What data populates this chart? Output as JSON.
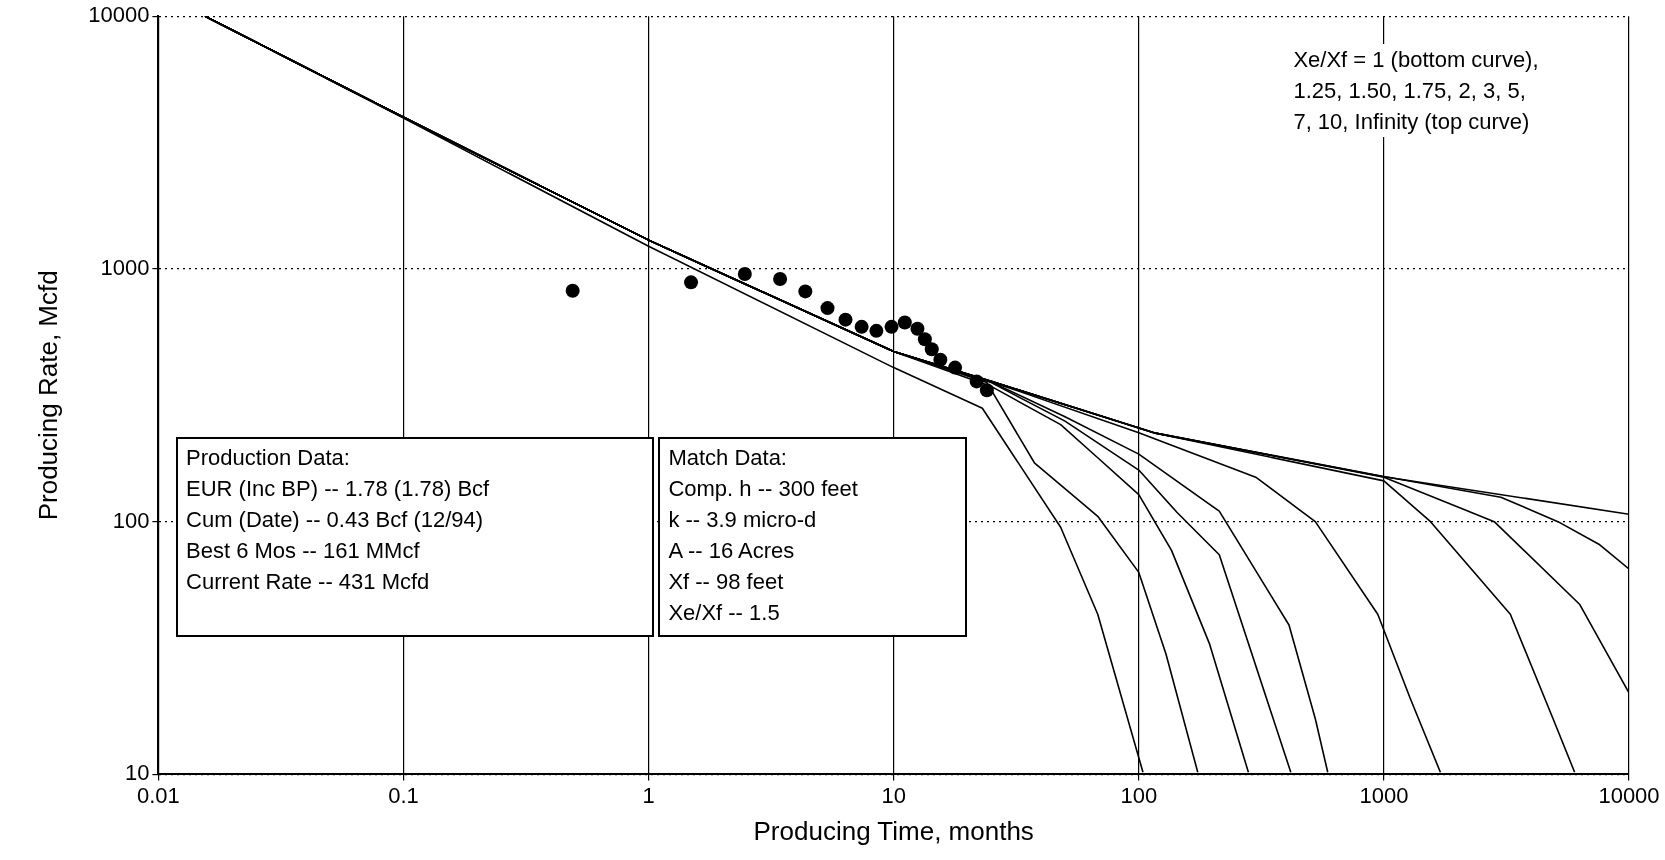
{
  "chart_data": {
    "type": "line",
    "xlabel": "Producing Time, months",
    "ylabel": "Producing Rate, Mcfd",
    "log": "xy",
    "xlim": [
      0.01,
      10000
    ],
    "ylim": [
      10,
      10000
    ],
    "xticks": [
      0.01,
      0.1,
      1,
      10,
      100,
      1000,
      10000
    ],
    "yticks": [
      10,
      100,
      1000,
      10000
    ],
    "grid": true,
    "legend": false,
    "marker": "none",
    "line_style": "solid",
    "annotations": [
      "Xe/Xf = 1 (bottom curve),\n1.25, 1.50, 1.75, 2, 3, 5,\n7, 10, Infinity (top curve)",
      "Production Data:\nEUR (Inc BP) -- 1.78 (1.78) Bcf\nCum (Date) -- 0.43 Bcf (12/94)\nBest 6 Mos -- 161 MMcf\nCurrent Rate -- 431 Mcfd",
      "Match Data:\nComp. h -- 300 feet\nk -- 3.9 micro-d\nA -- 16 Acres\nXf -- 98 feet\nXe/Xf -- 1.5"
    ],
    "series": [
      {
        "color": "#000000",
        "x": [
          0.0155,
          0.1,
          1,
          10,
          23,
          48,
          68,
          104
        ],
        "values": [
          10000,
          3950,
          1230,
          407,
          281,
          95,
          43,
          10.2
        ]
      },
      {
        "color": "#000000",
        "x": [
          0.0155,
          0.1,
          1,
          10,
          24,
          37.5,
          68,
          100,
          129,
          174
        ],
        "values": [
          10000,
          3980,
          1300,
          471,
          355,
          171,
          105,
          63,
          30,
          10.2
        ]
      },
      {
        "color": "#000000",
        "x": [
          0.0155,
          0.1,
          1,
          10,
          25,
          48,
          68,
          100,
          136,
          194,
          280
        ],
        "values": [
          10000,
          3980,
          1300,
          471,
          343,
          242,
          179,
          128,
          77,
          33,
          10.2
        ]
      },
      {
        "color": "#000000",
        "x": [
          0.0155,
          0.1,
          1,
          10,
          25,
          50,
          100,
          143,
          213,
          417
        ],
        "values": [
          10000,
          3980,
          1300,
          471,
          355,
          250,
          160,
          109,
          74,
          10.2
        ]
      },
      {
        "color": "#000000",
        "x": [
          0.0155,
          0.1,
          1,
          10,
          25,
          50,
          100,
          213,
          410,
          525,
          590
        ],
        "values": [
          10000,
          3980,
          1300,
          471,
          357,
          260,
          185,
          110,
          39,
          16.6,
          10.2
        ]
      },
      {
        "color": "#000000",
        "x": [
          0.0155,
          0.1,
          1,
          10,
          25,
          100,
          300,
          525,
          944,
          1280,
          1700
        ],
        "values": [
          10000,
          3980,
          1300,
          471,
          358,
          225,
          150,
          100,
          43,
          20,
          10.2
        ]
      },
      {
        "color": "#000000",
        "x": [
          0.0155,
          0.1,
          1,
          10,
          25,
          117,
          1000,
          1550,
          3280,
          4900,
          6000
        ],
        "values": [
          10000,
          3980,
          1300,
          471,
          359,
          224,
          145,
          100,
          43,
          16.6,
          10.2
        ]
      },
      {
        "color": "#000000",
        "x": [
          0.0155,
          0.1,
          1,
          10,
          25,
          117,
          1000,
          2820,
          6300,
          10000
        ],
        "values": [
          10000,
          3980,
          1300,
          471,
          359,
          224,
          150,
          100,
          47,
          21
        ]
      },
      {
        "color": "#000000",
        "x": [
          0.0155,
          0.1,
          1,
          10,
          25,
          117,
          1000,
          3000,
          5130,
          7600,
          10000
        ],
        "values": [
          10000,
          3980,
          1300,
          471,
          359,
          224,
          151,
          125,
          100,
          81,
          65
        ]
      },
      {
        "color": "#000000",
        "x": [
          0.0155,
          0.1,
          1,
          10,
          25,
          117,
          986,
          10000
        ],
        "values": [
          10000,
          3980,
          1300,
          471,
          359,
          224,
          151,
          107
        ]
      },
      {
        "type": "scatter",
        "marker": "circle",
        "color": "#000000",
        "x": [
          0.49,
          1.49,
          2.47,
          3.44,
          4.36,
          5.37,
          6.36,
          7.4,
          8.5,
          9.8,
          11.1,
          12.5,
          13.4,
          14.3,
          15.5,
          17.8,
          21.8,
          24
        ],
        "values": [
          820,
          885,
          955,
          912,
          815,
          700,
          630,
          590,
          569,
          590,
          614,
          580,
          527,
          481,
          437,
          407,
          359,
          331
        ]
      }
    ]
  }
}
